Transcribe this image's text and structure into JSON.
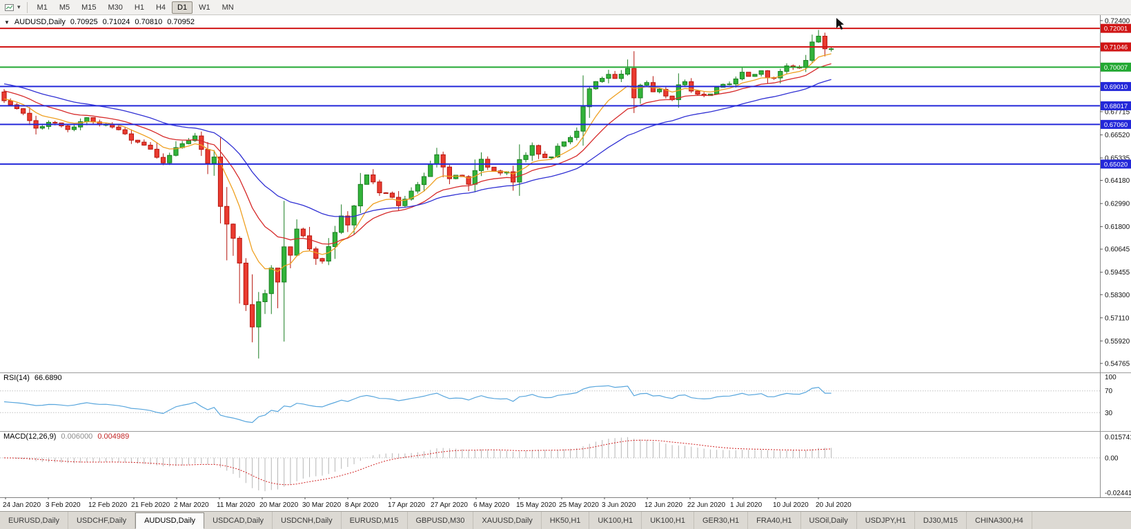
{
  "toolbar": {
    "chart_icon": "chart-window-icon",
    "timeframes": [
      "M1",
      "M5",
      "M15",
      "M30",
      "H1",
      "H4",
      "D1",
      "W1",
      "MN"
    ],
    "active_timeframe": "D1"
  },
  "chart": {
    "symbol_period": "AUDUSD,Daily",
    "ohlc": {
      "open": "0.70925",
      "high": "0.71024",
      "low": "0.70810",
      "close": "0.70952"
    }
  },
  "chart_data": {
    "type": "candlestick",
    "symbol": "AUDUSD",
    "timeframe": "Daily",
    "candle_count": 131,
    "colors": {
      "up_fill": "#32b33a",
      "up_stroke": "#1b7e22",
      "down_fill": "#ea3b30",
      "down_stroke": "#b6150d"
    },
    "price_axis": {
      "view_max": 0.7268,
      "view_min": 0.543,
      "ticks": [
        "0.72400",
        "0.67715",
        "0.66520",
        "0.65335",
        "0.64180",
        "0.62990",
        "0.61800",
        "0.60645",
        "0.59455",
        "0.58300",
        "0.57110",
        "0.55920",
        "0.54765"
      ]
    },
    "hlines": [
      {
        "price": 0.72001,
        "label": "0.72001",
        "color": "#d01515",
        "width": 2
      },
      {
        "price": 0.71046,
        "label": "0.71046",
        "color": "#d01515",
        "width": 2
      },
      {
        "price": 0.70007,
        "label": "0.70007",
        "color": "#22a832",
        "width": 2
      },
      {
        "price": 0.6901,
        "label": "0.69010",
        "color": "#2328d9",
        "width": 2
      },
      {
        "price": 0.68017,
        "label": "0.68017",
        "color": "#2328d9",
        "width": 2
      },
      {
        "price": 0.6706,
        "label": "0.67060",
        "color": "#2328d9",
        "width": 2
      },
      {
        "price": 0.6502,
        "label": "0.65020",
        "color": "#2328d9",
        "width": 2
      }
    ],
    "moving_averages": [
      {
        "name": "ma-fast",
        "period": 8,
        "seed": 0.684,
        "color": "#efa021"
      },
      {
        "name": "ma-mid",
        "period": 17,
        "seed": 0.6885,
        "color": "#d62a2a"
      },
      {
        "name": "ma-slow",
        "period": 34,
        "seed": 0.692,
        "color": "#2f2fd3"
      }
    ],
    "close_anchors": [
      [
        0,
        0.6828
      ],
      [
        3,
        0.676
      ],
      [
        5,
        0.6691
      ],
      [
        8,
        0.672
      ],
      [
        10,
        0.6673
      ],
      [
        13,
        0.6741
      ],
      [
        15,
        0.6712
      ],
      [
        18,
        0.6685
      ],
      [
        20,
        0.6627
      ],
      [
        22,
        0.66
      ],
      [
        25,
        0.6515
      ],
      [
        27,
        0.659
      ],
      [
        30,
        0.664
      ],
      [
        32,
        0.65
      ],
      [
        33,
        0.6535
      ],
      [
        34,
        0.629
      ],
      [
        35,
        0.619
      ],
      [
        36,
        0.6125
      ],
      [
        37,
        0.599
      ],
      [
        38,
        0.578
      ],
      [
        39,
        0.5665
      ],
      [
        40,
        0.5795
      ],
      [
        41,
        0.5835
      ],
      [
        42,
        0.5965
      ],
      [
        43,
        0.59
      ],
      [
        44,
        0.6075
      ],
      [
        45,
        0.603
      ],
      [
        46,
        0.617
      ],
      [
        47,
        0.6125
      ],
      [
        48,
        0.607
      ],
      [
        49,
        0.601
      ],
      [
        50,
        0.5995
      ],
      [
        51,
        0.608
      ],
      [
        52,
        0.615
      ],
      [
        53,
        0.623
      ],
      [
        54,
        0.619
      ],
      [
        55,
        0.629
      ],
      [
        56,
        0.639
      ],
      [
        57,
        0.6445
      ],
      [
        58,
        0.641
      ],
      [
        59,
        0.636
      ],
      [
        60,
        0.6355
      ],
      [
        61,
        0.633
      ],
      [
        62,
        0.629
      ],
      [
        63,
        0.632
      ],
      [
        64,
        0.636
      ],
      [
        65,
        0.639
      ],
      [
        66,
        0.643
      ],
      [
        67,
        0.6495
      ],
      [
        68,
        0.6545
      ],
      [
        69,
        0.648
      ],
      [
        70,
        0.642
      ],
      [
        71,
        0.6445
      ],
      [
        72,
        0.643
      ],
      [
        73,
        0.64
      ],
      [
        74,
        0.6475
      ],
      [
        75,
        0.653
      ],
      [
        76,
        0.648
      ],
      [
        77,
        0.647
      ],
      [
        78,
        0.645
      ],
      [
        79,
        0.646
      ],
      [
        80,
        0.6415
      ],
      [
        81,
        0.653
      ],
      [
        82,
        0.6545
      ],
      [
        83,
        0.66
      ],
      [
        84,
        0.656
      ],
      [
        85,
        0.6535
      ],
      [
        86,
        0.6545
      ],
      [
        87,
        0.659
      ],
      [
        88,
        0.662
      ],
      [
        89,
        0.6645
      ],
      [
        90,
        0.6665
      ],
      [
        91,
        0.68
      ],
      [
        92,
        0.689
      ],
      [
        93,
        0.692
      ],
      [
        94,
        0.695
      ],
      [
        95,
        0.6965
      ],
      [
        96,
        0.694
      ],
      [
        97,
        0.696
      ],
      [
        98,
        0.7
      ],
      [
        99,
        0.685
      ],
      [
        100,
        0.6905
      ],
      [
        101,
        0.692
      ],
      [
        102,
        0.688
      ],
      [
        103,
        0.688
      ],
      [
        104,
        0.6855
      ],
      [
        105,
        0.6835
      ],
      [
        106,
        0.6905
      ],
      [
        107,
        0.693
      ],
      [
        108,
        0.6885
      ],
      [
        109,
        0.6865
      ],
      [
        110,
        0.686
      ],
      [
        111,
        0.6865
      ],
      [
        112,
        0.689
      ],
      [
        113,
        0.6915
      ],
      [
        114,
        0.692
      ],
      [
        115,
        0.694
      ],
      [
        116,
        0.6975
      ],
      [
        117,
        0.6945
      ],
      [
        118,
        0.696
      ],
      [
        119,
        0.6985
      ],
      [
        120,
        0.695
      ],
      [
        121,
        0.694
      ],
      [
        122,
        0.698
      ],
      [
        123,
        0.701
      ],
      [
        124,
        0.7
      ],
      [
        125,
        0.6995
      ],
      [
        126,
        0.704
      ],
      [
        127,
        0.713
      ],
      [
        128,
        0.716
      ],
      [
        129,
        0.7095
      ],
      [
        130,
        0.70952
      ]
    ],
    "candle_overrides": {
      "39": {
        "low": 0.5585
      },
      "98": {
        "high": 0.704
      },
      "127": {
        "high": 0.7168
      },
      "128": {
        "high": 0.7192
      },
      "129": {
        "high": 0.7178
      },
      "130": {
        "open": 0.70925,
        "high": 0.71024,
        "low": 0.7081,
        "close": 0.70952
      }
    }
  },
  "rsi": {
    "label": "RSI(14)",
    "value": "66.6890",
    "period": 14,
    "line_color": "#58a6dd",
    "levels": [
      {
        "value": 100,
        "label": "100"
      },
      {
        "value": 70,
        "label": "70"
      },
      {
        "value": 30,
        "label": "30"
      }
    ]
  },
  "macd": {
    "label": "MACD(12,26,9)",
    "value_main": "0.006000",
    "value_signal": "0.004989",
    "fast": 12,
    "slow": 26,
    "signal": 9,
    "histogram_color": "#b6b6b6",
    "signal_color": "#d02020",
    "axis": {
      "max": 0.015741,
      "max_label": "0.015741",
      "zero_label": "0.00",
      "min": -0.024412,
      "min_label": "-0.024412"
    }
  },
  "time_axis": {
    "labels": [
      "24 Jan 2020",
      "3 Feb 2020",
      "12 Feb 2020",
      "21 Feb 2020",
      "2 Mar 2020",
      "11 Mar 2020",
      "20 Mar 2020",
      "30 Mar 2020",
      "8 Apr 2020",
      "17 Apr 2020",
      "27 Apr 2020",
      "6 May 2020",
      "15 May 2020",
      "25 May 2020",
      "3 Jun 2020",
      "12 Jun 2020",
      "22 Jun 2020",
      "1 Jul 2020",
      "10 Jul 2020",
      "20 Jul 2020"
    ]
  },
  "tabs": {
    "active_index": 2,
    "items": [
      "EURUSD,Daily",
      "USDCHF,Daily",
      "AUDUSD,Daily",
      "USDCAD,Daily",
      "USDCNH,Daily",
      "EURUSD,M15",
      "GBPUSD,M30",
      "XAUUSD,Daily",
      "HK50,H1",
      "UK100,H1",
      "UK100,H1",
      "GER30,H1",
      "FRA40,H1",
      "USOil,Daily",
      "USDJPY,H1",
      "DJ30,M15",
      "CHINA300,H4"
    ]
  }
}
